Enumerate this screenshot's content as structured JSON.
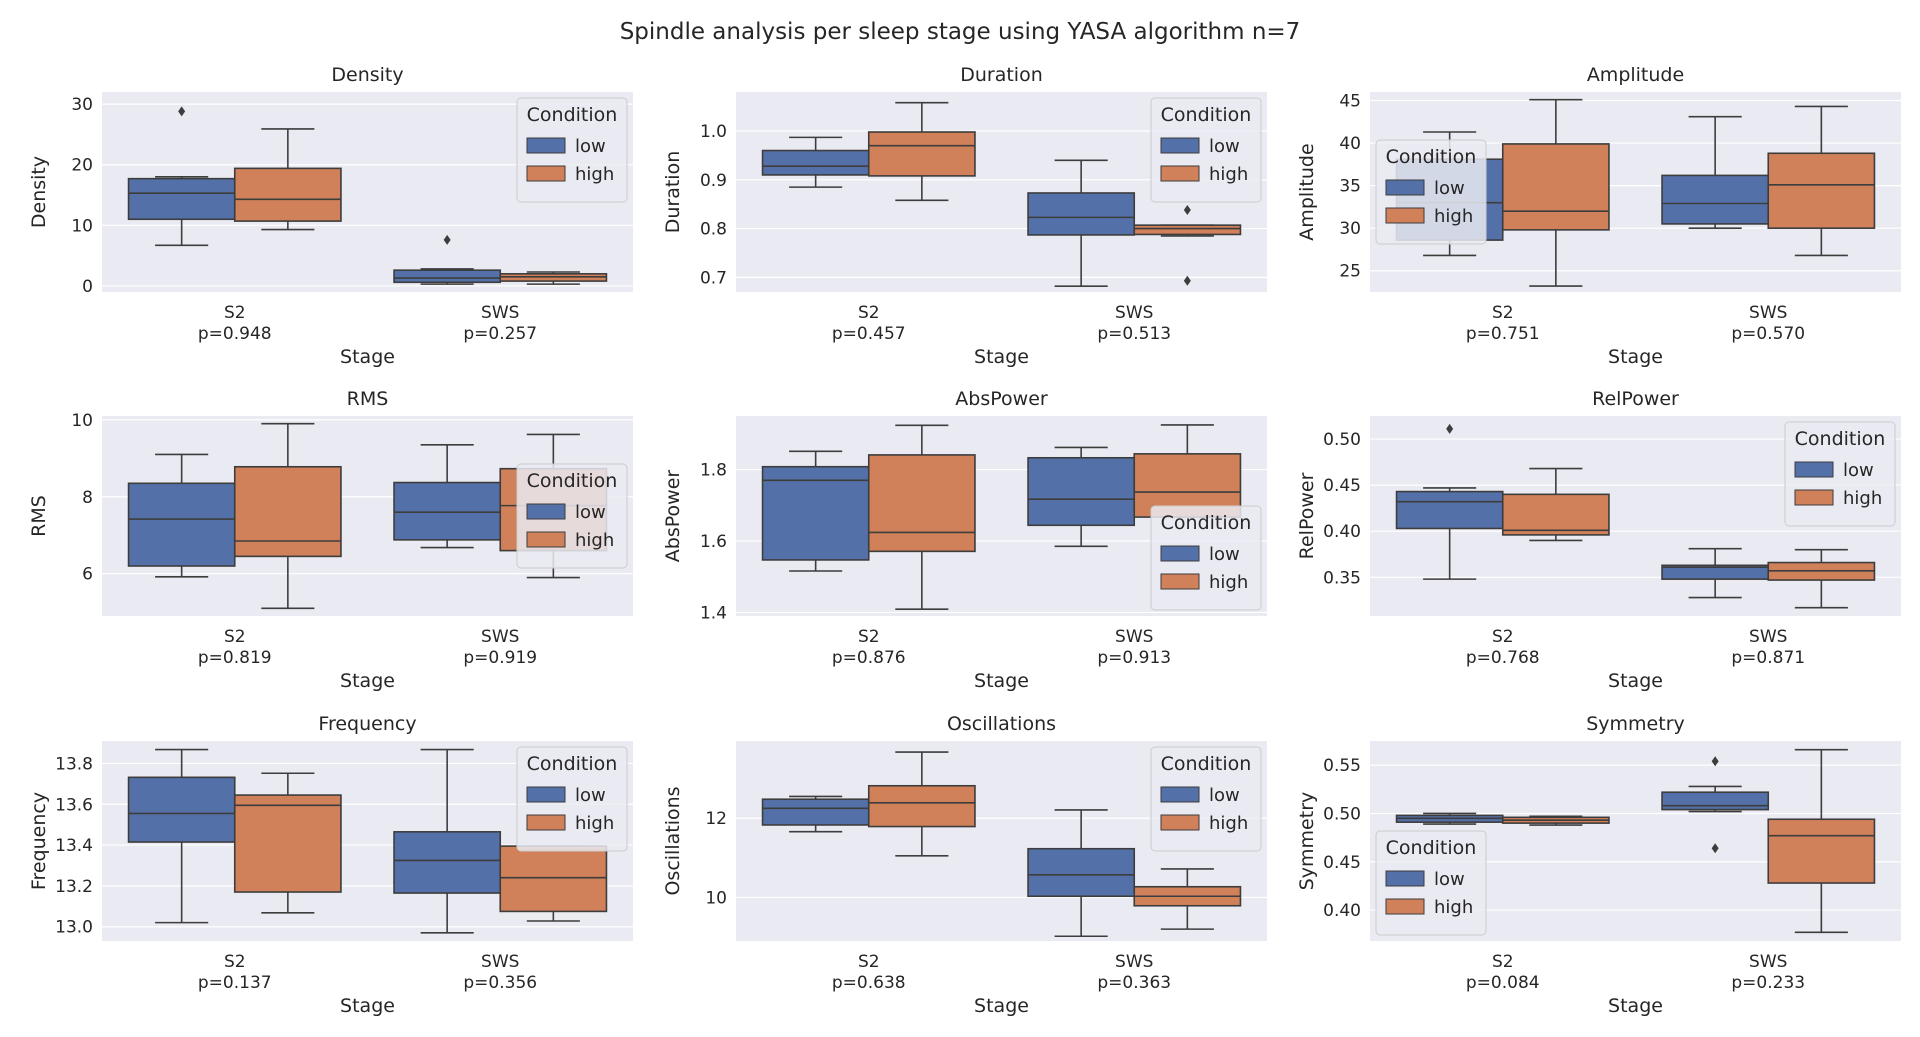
{
  "figure": {
    "title": "Spindle analysis per sleep stage using YASA algorithm n=7"
  },
  "colors": {
    "low": "#5470a8",
    "high": "#d0815a",
    "panel_bg": "#eaeaf2",
    "grid": "#ffffff",
    "line": "#3d3d3d"
  },
  "legend": {
    "title": "Condition",
    "entries": [
      "low",
      "high"
    ]
  },
  "chart_data": [
    {
      "type": "box",
      "title": "Density",
      "xlabel": "Stage",
      "ylabel": "Density",
      "categories": [
        "S2",
        "SWS"
      ],
      "pvalues": [
        "p=0.948",
        "p=0.257"
      ],
      "ylim": [
        -1,
        32
      ],
      "yticks": [
        0,
        10,
        20,
        30
      ],
      "grid": true,
      "legend_position": "upper-right",
      "series": [
        {
          "name": "low",
          "boxes": [
            {
              "whislo": 6.7,
              "q1": 11.0,
              "med": 15.3,
              "q3": 17.7,
              "whishi": 18.0,
              "fliers": [
                28.8
              ]
            },
            {
              "whislo": 0.3,
              "q1": 0.6,
              "med": 1.3,
              "q3": 2.6,
              "whishi": 2.8,
              "fliers": [
                7.6
              ]
            }
          ]
        },
        {
          "name": "high",
          "boxes": [
            {
              "whislo": 9.3,
              "q1": 10.7,
              "med": 14.3,
              "q3": 19.4,
              "whishi": 25.9,
              "fliers": []
            },
            {
              "whislo": 0.3,
              "q1": 0.8,
              "med": 1.5,
              "q3": 2.0,
              "whishi": 2.3,
              "fliers": []
            }
          ]
        }
      ]
    },
    {
      "type": "box",
      "title": "Duration",
      "xlabel": "Stage",
      "ylabel": "Duration",
      "categories": [
        "S2",
        "SWS"
      ],
      "pvalues": [
        "p=0.457",
        "p=0.513"
      ],
      "ylim": [
        0.67,
        1.08
      ],
      "yticks": [
        0.7,
        0.8,
        0.9,
        1.0
      ],
      "grid": true,
      "legend_position": "upper-right",
      "series": [
        {
          "name": "low",
          "boxes": [
            {
              "whislo": 0.885,
              "q1": 0.91,
              "med": 0.928,
              "q3": 0.96,
              "whishi": 0.987,
              "fliers": []
            },
            {
              "whislo": 0.682,
              "q1": 0.787,
              "med": 0.823,
              "q3": 0.873,
              "whishi": 0.94,
              "fliers": []
            }
          ]
        },
        {
          "name": "high",
          "boxes": [
            {
              "whislo": 0.858,
              "q1": 0.908,
              "med": 0.97,
              "q3": 0.998,
              "whishi": 1.058,
              "fliers": []
            },
            {
              "whislo": 0.785,
              "q1": 0.788,
              "med": 0.8,
              "q3": 0.807,
              "whishi": 0.807,
              "fliers": [
                0.838,
                0.693
              ]
            }
          ]
        }
      ]
    },
    {
      "type": "box",
      "title": "Amplitude",
      "xlabel": "Stage",
      "ylabel": "Amplitude",
      "categories": [
        "S2",
        "SWS"
      ],
      "pvalues": [
        "p=0.751",
        "p=0.570"
      ],
      "ylim": [
        22.5,
        46
      ],
      "yticks": [
        25,
        30,
        35,
        40,
        45
      ],
      "grid": true,
      "legend_position": "center-left",
      "series": [
        {
          "name": "low",
          "boxes": [
            {
              "whislo": 26.8,
              "q1": 28.6,
              "med": 33.0,
              "q3": 38.1,
              "whishi": 41.3,
              "fliers": []
            },
            {
              "whislo": 30.0,
              "q1": 30.5,
              "med": 32.9,
              "q3": 36.2,
              "whishi": 43.1,
              "fliers": []
            }
          ]
        },
        {
          "name": "high",
          "boxes": [
            {
              "whislo": 23.2,
              "q1": 29.8,
              "med": 32.0,
              "q3": 39.9,
              "whishi": 45.1,
              "fliers": []
            },
            {
              "whislo": 26.8,
              "q1": 30.0,
              "med": 35.1,
              "q3": 38.8,
              "whishi": 44.3,
              "fliers": []
            }
          ]
        }
      ]
    },
    {
      "type": "box",
      "title": "RMS",
      "xlabel": "Stage",
      "ylabel": "RMS",
      "categories": [
        "S2",
        "SWS"
      ],
      "pvalues": [
        "p=0.819",
        "p=0.919"
      ],
      "ylim": [
        4.9,
        10.1
      ],
      "yticks": [
        6,
        8,
        10
      ],
      "grid": true,
      "legend_position": "center-right",
      "series": [
        {
          "name": "low",
          "boxes": [
            {
              "whislo": 5.92,
              "q1": 6.2,
              "med": 7.42,
              "q3": 8.35,
              "whishi": 9.1,
              "fliers": []
            },
            {
              "whislo": 6.68,
              "q1": 6.88,
              "med": 7.6,
              "q3": 8.37,
              "whishi": 9.35,
              "fliers": []
            }
          ]
        },
        {
          "name": "high",
          "boxes": [
            {
              "whislo": 5.1,
              "q1": 6.45,
              "med": 6.85,
              "q3": 8.78,
              "whishi": 9.9,
              "fliers": []
            },
            {
              "whislo": 5.9,
              "q1": 6.6,
              "med": 7.77,
              "q3": 8.73,
              "whishi": 9.62,
              "fliers": []
            }
          ]
        }
      ]
    },
    {
      "type": "box",
      "title": "AbsPower",
      "xlabel": "Stage",
      "ylabel": "AbsPower",
      "categories": [
        "S2",
        "SWS"
      ],
      "pvalues": [
        "p=0.876",
        "p=0.913"
      ],
      "ylim": [
        1.39,
        1.95
      ],
      "yticks": [
        1.4,
        1.6,
        1.8
      ],
      "grid": true,
      "legend_position": "lower-right",
      "series": [
        {
          "name": "low",
          "boxes": [
            {
              "whislo": 1.516,
              "q1": 1.547,
              "med": 1.77,
              "q3": 1.808,
              "whishi": 1.851,
              "fliers": []
            },
            {
              "whislo": 1.585,
              "q1": 1.644,
              "med": 1.717,
              "q3": 1.833,
              "whishi": 1.862,
              "fliers": []
            }
          ]
        },
        {
          "name": "high",
          "boxes": [
            {
              "whislo": 1.409,
              "q1": 1.571,
              "med": 1.624,
              "q3": 1.841,
              "whishi": 1.924,
              "fliers": []
            },
            {
              "whislo": 1.667,
              "q1": 1.667,
              "med": 1.737,
              "q3": 1.844,
              "whishi": 1.925,
              "fliers": []
            }
          ]
        }
      ]
    },
    {
      "type": "box",
      "title": "RelPower",
      "xlabel": "Stage",
      "ylabel": "RelPower",
      "categories": [
        "S2",
        "SWS"
      ],
      "pvalues": [
        "p=0.768",
        "p=0.871"
      ],
      "ylim": [
        0.308,
        0.525
      ],
      "yticks": [
        0.35,
        0.4,
        0.45,
        0.5
      ],
      "grid": true,
      "legend_position": "upper-right",
      "series": [
        {
          "name": "low",
          "boxes": [
            {
              "whislo": 0.348,
              "q1": 0.403,
              "med": 0.432,
              "q3": 0.443,
              "whishi": 0.447,
              "fliers": [
                0.511
              ]
            },
            {
              "whislo": 0.328,
              "q1": 0.348,
              "med": 0.361,
              "q3": 0.363,
              "whishi": 0.381,
              "fliers": []
            }
          ]
        },
        {
          "name": "high",
          "boxes": [
            {
              "whislo": 0.39,
              "q1": 0.396,
              "med": 0.401,
              "q3": 0.44,
              "whishi": 0.468,
              "fliers": []
            },
            {
              "whislo": 0.317,
              "q1": 0.347,
              "med": 0.357,
              "q3": 0.366,
              "whishi": 0.38,
              "fliers": []
            }
          ]
        }
      ]
    },
    {
      "type": "box",
      "title": "Frequency",
      "xlabel": "Stage",
      "ylabel": "Frequency",
      "categories": [
        "S2",
        "SWS"
      ],
      "pvalues": [
        "p=0.137",
        "p=0.356"
      ],
      "ylim": [
        12.93,
        13.91
      ],
      "yticks": [
        13.0,
        13.2,
        13.4,
        13.6,
        13.8
      ],
      "grid": true,
      "legend_position": "upper-right",
      "series": [
        {
          "name": "low",
          "boxes": [
            {
              "whislo": 13.02,
              "q1": 13.415,
              "med": 13.555,
              "q3": 13.732,
              "whishi": 13.868,
              "fliers": []
            },
            {
              "whislo": 12.97,
              "q1": 13.165,
              "med": 13.325,
              "q3": 13.465,
              "whishi": 13.868,
              "fliers": []
            }
          ]
        },
        {
          "name": "high",
          "boxes": [
            {
              "whislo": 13.068,
              "q1": 13.17,
              "med": 13.595,
              "q3": 13.645,
              "whishi": 13.752,
              "fliers": []
            },
            {
              "whislo": 13.028,
              "q1": 13.075,
              "med": 13.24,
              "q3": 13.395,
              "whishi": 13.395,
              "fliers": []
            }
          ]
        }
      ]
    },
    {
      "type": "box",
      "title": "Oscillations",
      "xlabel": "Stage",
      "ylabel": "Oscillations",
      "categories": [
        "S2",
        "SWS"
      ],
      "pvalues": [
        "p=0.638",
        "p=0.363"
      ],
      "ylim": [
        8.9,
        13.95
      ],
      "yticks": [
        10,
        12
      ],
      "grid": true,
      "legend_position": "upper-right",
      "series": [
        {
          "name": "low",
          "boxes": [
            {
              "whislo": 11.66,
              "q1": 11.83,
              "med": 12.25,
              "q3": 12.48,
              "whishi": 12.55,
              "fliers": []
            },
            {
              "whislo": 9.02,
              "q1": 10.03,
              "med": 10.57,
              "q3": 11.23,
              "whishi": 12.21,
              "fliers": []
            }
          ]
        },
        {
          "name": "high",
          "boxes": [
            {
              "whislo": 11.05,
              "q1": 11.79,
              "med": 12.39,
              "q3": 12.82,
              "whishi": 13.67,
              "fliers": []
            },
            {
              "whislo": 9.2,
              "q1": 9.79,
              "med": 10.03,
              "q3": 10.27,
              "whishi": 10.72,
              "fliers": []
            }
          ]
        }
      ]
    },
    {
      "type": "box",
      "title": "Symmetry",
      "xlabel": "Stage",
      "ylabel": "Symmetry",
      "categories": [
        "S2",
        "SWS"
      ],
      "pvalues": [
        "p=0.084",
        "p=0.233"
      ],
      "ylim": [
        0.368,
        0.575
      ],
      "yticks": [
        0.4,
        0.45,
        0.5,
        0.55
      ],
      "grid": true,
      "legend_position": "lower-left",
      "series": [
        {
          "name": "low",
          "boxes": [
            {
              "whislo": 0.489,
              "q1": 0.491,
              "med": 0.495,
              "q3": 0.498,
              "whishi": 0.5,
              "fliers": []
            },
            {
              "whislo": 0.502,
              "q1": 0.504,
              "med": 0.508,
              "q3": 0.522,
              "whishi": 0.528,
              "fliers": [
                0.554,
                0.464
              ]
            }
          ]
        },
        {
          "name": "high",
          "boxes": [
            {
              "whislo": 0.488,
              "q1": 0.49,
              "med": 0.493,
              "q3": 0.496,
              "whishi": 0.497,
              "fliers": []
            },
            {
              "whislo": 0.377,
              "q1": 0.428,
              "med": 0.477,
              "q3": 0.494,
              "whishi": 0.566,
              "fliers": []
            }
          ]
        }
      ]
    }
  ]
}
